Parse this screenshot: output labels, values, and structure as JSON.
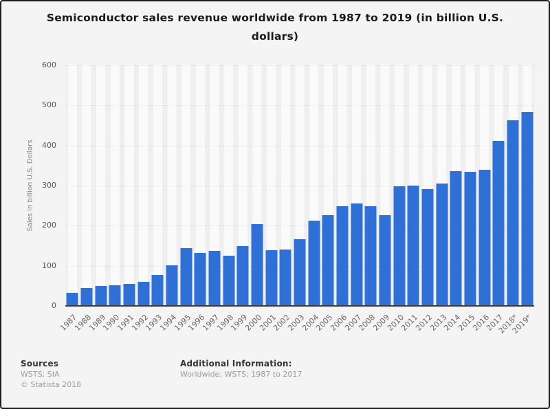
{
  "chart_data": {
    "type": "bar",
    "title": "Semiconductor sales revenue worldwide from 1987 to 2019 (in billion U.S. dollars)",
    "xlabel": "",
    "ylabel": "Sales in billion U.S. Dollars",
    "categories": [
      "1987",
      "1988",
      "1989",
      "1990",
      "1991",
      "1992",
      "1993",
      "1994",
      "1995",
      "1996",
      "1997",
      "1998",
      "1999",
      "2000",
      "2001",
      "2002",
      "2003",
      "2004",
      "2005",
      "2006",
      "2007",
      "2008",
      "2009",
      "2010",
      "2011",
      "2012",
      "2013",
      "2014",
      "2015",
      "2016",
      "2017",
      "2018*",
      "2019*"
    ],
    "values": [
      33,
      45,
      49,
      51,
      55,
      60,
      77,
      102,
      144,
      132,
      137,
      126,
      149,
      204,
      139,
      141,
      166,
      213,
      227,
      248,
      256,
      249,
      226,
      298,
      300,
      292,
      306,
      336,
      335,
      339,
      412,
      463,
      484
    ],
    "ylim": [
      0,
      600
    ],
    "yticks": [
      0,
      100,
      200,
      300,
      400,
      500,
      600
    ],
    "grid": "horizontal",
    "legend": "none",
    "bar_color": "#2f70d6",
    "background_color": "#f4f4f4"
  },
  "footer": {
    "sources_heading": "Sources",
    "sources_line": "WSTS; SIA",
    "copyright": "© Statista 2018",
    "additional_heading": "Additional Information:",
    "additional_line": "Worldwide; WSTS; 1987 to 2017"
  }
}
